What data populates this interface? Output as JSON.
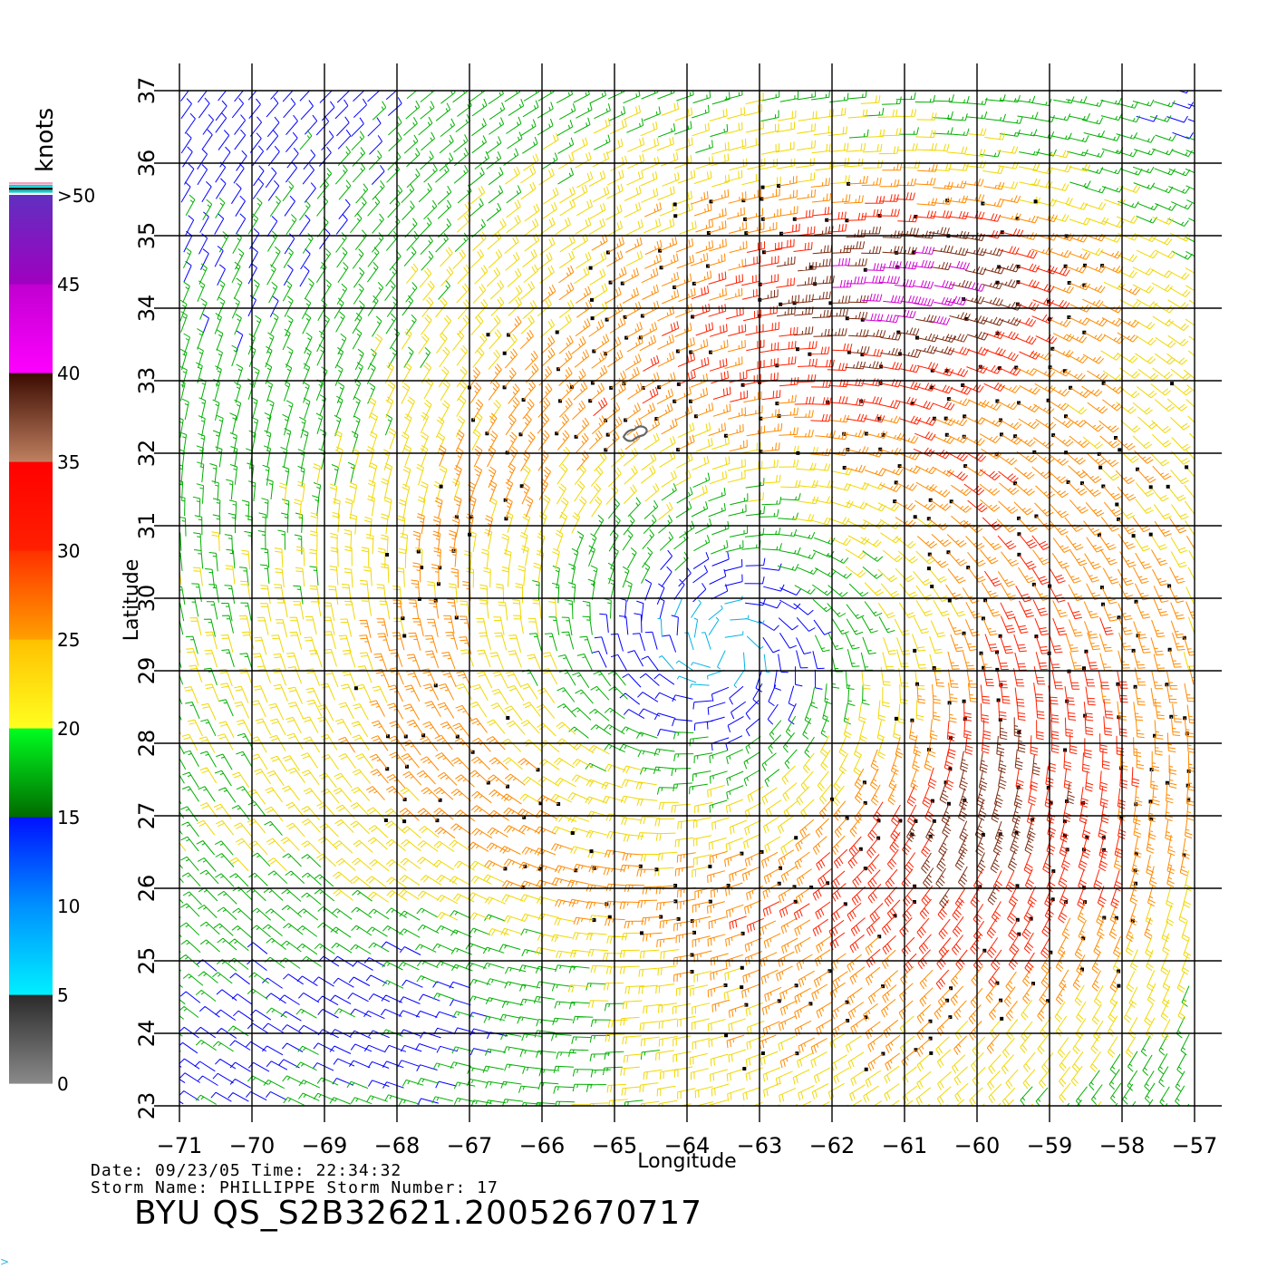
{
  "colorbar": {
    "unit_label": "knots",
    "tick_labels": [
      "0",
      "5",
      "10",
      "15",
      "20",
      "25",
      "30",
      "35",
      "40",
      "45",
      ">50"
    ],
    "bands": [
      {
        "range": "0-5",
        "from": "#8a8a8a",
        "to": "#2a2a2a"
      },
      {
        "range": "5-10",
        "from": "#00f0ff",
        "to": "#0090ff"
      },
      {
        "range": "10-15",
        "from": "#0090ff",
        "to": "#0010ff"
      },
      {
        "range": "15-20",
        "from": "#006a00",
        "to": "#00ff20"
      },
      {
        "range": "20-25",
        "from": "#ffff20",
        "to": "#ffc000"
      },
      {
        "range": "25-30",
        "from": "#ffa000",
        "to": "#ff3000"
      },
      {
        "range": "30-35",
        "from": "#ff2000",
        "to": "#ff0000"
      },
      {
        "range": "35-40",
        "from": "#c08060",
        "to": "#3a0a00"
      },
      {
        "range": "40-45",
        "from": "#ff00ff",
        "to": "#c000d0"
      },
      {
        "range": "45-50",
        "from": "#a000c0",
        "to": "#6030c0"
      }
    ],
    "top_stripes": [
      "#f0a0c0",
      "#00d0d0",
      "#000000",
      "#00d0d0"
    ]
  },
  "map": {
    "longitudes": [
      -71,
      -70,
      -69,
      -68,
      -67,
      -66,
      -65,
      -64,
      -63,
      -62,
      -61,
      -60,
      -59,
      -58,
      -57
    ],
    "latitudes": [
      23,
      24,
      25,
      26,
      27,
      28,
      29,
      30,
      31,
      32,
      33,
      34,
      35,
      36,
      37
    ],
    "xlabel": "Longitude",
    "ylabel": "Latitude",
    "storm_center": {
      "lon": -63.5,
      "lat": 29.3
    },
    "land_feature": "Bermuda",
    "land_center": {
      "lon": -64.7,
      "lat": 32.3
    },
    "field_type": "wind barbs colored by speed (knots)"
  },
  "info": {
    "date_line": "Date: 09/23/05   Time: 22:34:32",
    "storm_line": "Storm Name: PHILLIPPE   Storm Number: 17",
    "title": "BYU QS_S2B32621.20052670717"
  },
  "corner_mark": ">"
}
